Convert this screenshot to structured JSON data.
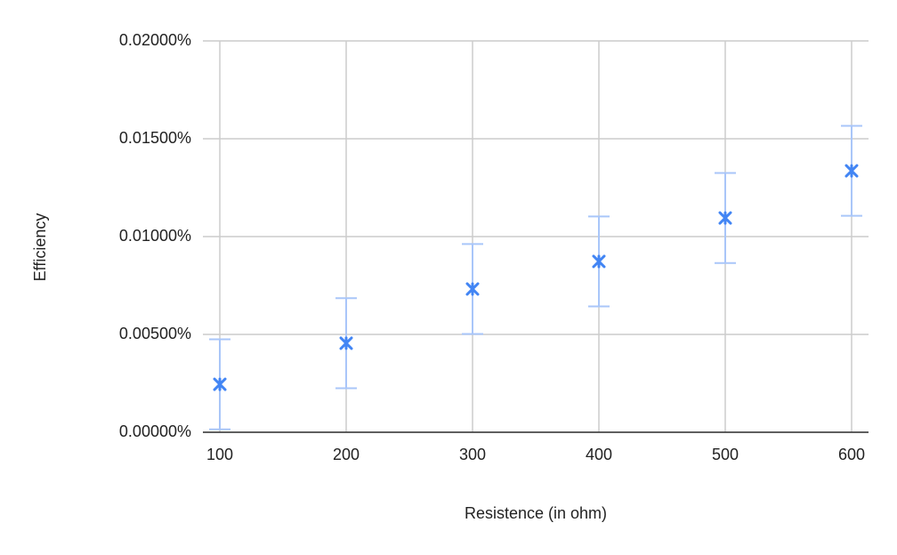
{
  "chart_data": {
    "type": "scatter",
    "x_label": "Resistence (in ohm)",
    "y_label": "Efficiency",
    "x": [
      100,
      200,
      300,
      400,
      500,
      600
    ],
    "values": [
      0.00245,
      0.00455,
      0.00732,
      0.00873,
      0.01095,
      0.01336
    ],
    "errors": [
      0.0023,
      0.0023,
      0.0023,
      0.0023,
      0.0023,
      0.0023
    ],
    "color": "#4285f4",
    "error_color": "#a9c6f9",
    "xlim": [
      86.6,
      613.4
    ],
    "xticks": [
      100,
      200,
      300,
      400,
      500,
      600
    ],
    "ylim": [
      0,
      0.02
    ],
    "yticks": [
      {
        "value": 0,
        "label": "0.00000%"
      },
      {
        "value": 0.005,
        "label": "0.00500%"
      },
      {
        "value": 0.01,
        "label": "0.01000%"
      },
      {
        "value": 0.015,
        "label": "0.01500%"
      },
      {
        "value": 0.02,
        "label": "0.02000%"
      }
    ],
    "grid": true
  }
}
